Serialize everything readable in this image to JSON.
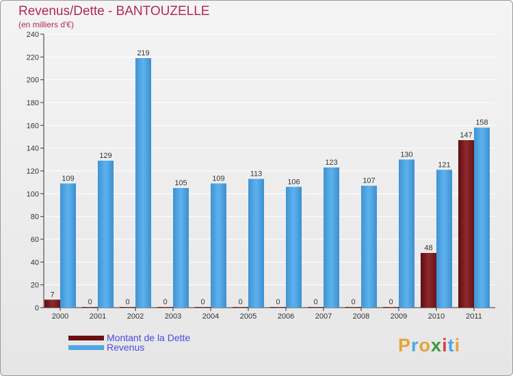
{
  "chart_data": {
    "type": "bar",
    "title": "Revenus/Dette - BANTOUZELLE",
    "subtitle": "(en milliers d'€)",
    "categories": [
      "2000",
      "2001",
      "2002",
      "2003",
      "2004",
      "2005",
      "2006",
      "2007",
      "2008",
      "2009",
      "2010",
      "2011"
    ],
    "series": [
      {
        "name": "Montant de la Dette",
        "color": "#7a1f22",
        "values": [
          7,
          0,
          0,
          0,
          0,
          0,
          0,
          0,
          0,
          0,
          48,
          147
        ]
      },
      {
        "name": "Revenus",
        "color": "#4ea6e4",
        "values": [
          109,
          129,
          219,
          105,
          109,
          113,
          106,
          123,
          107,
          130,
          121,
          158
        ]
      }
    ],
    "ylim": [
      0,
      240
    ],
    "yticks": [
      0,
      20,
      40,
      60,
      80,
      100,
      120,
      140,
      160,
      180,
      200,
      220,
      240
    ],
    "grid": true,
    "legend_position": "bottom-left"
  },
  "logo": {
    "letters": [
      "P",
      "r",
      "o",
      "x",
      "i",
      "t",
      "i"
    ],
    "colors": [
      "#e8a23a",
      "#4ea6e4",
      "#e8a23a",
      "#3a9a3a",
      "#d94040",
      "#4ea6e4",
      "#e8a23a"
    ]
  }
}
